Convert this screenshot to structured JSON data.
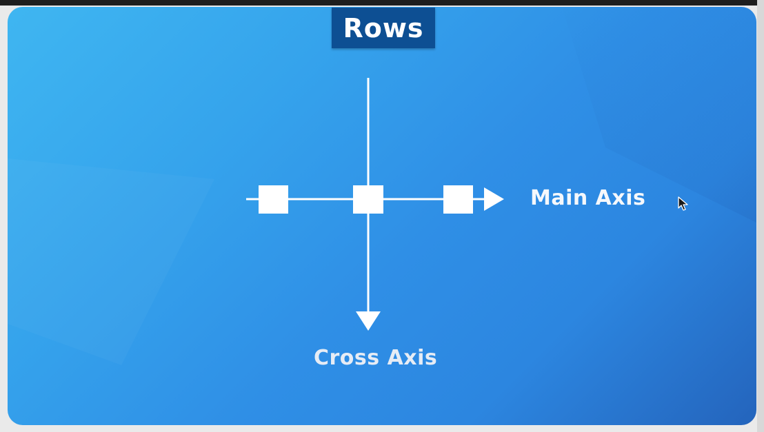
{
  "slide": {
    "title": "Rows",
    "main_axis_label": "Main Axis",
    "cross_axis_label": "Cross Axis"
  },
  "colors": {
    "background_start": "#3fb6f1",
    "background_end": "#2464bc",
    "title_badge": "#0d4f93",
    "foreground": "#ffffff"
  },
  "diagram": {
    "item_count": 3,
    "main_axis_direction": "right",
    "cross_axis_direction": "down"
  },
  "icons": [
    "mouse-pointer-icon"
  ]
}
